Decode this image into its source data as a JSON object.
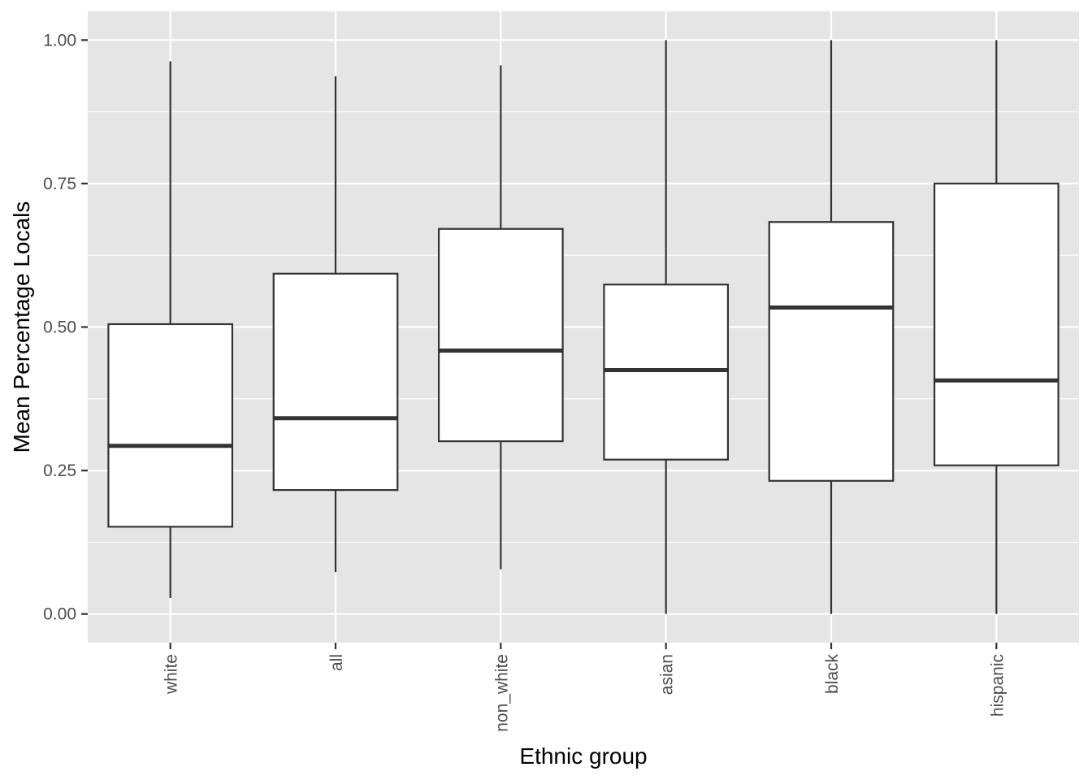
{
  "chart_data": {
    "type": "boxplot",
    "title": "",
    "xlabel": "Ethnic group",
    "ylabel": "Mean Percentage Locals",
    "ylim": [
      -0.05,
      1.05
    ],
    "yticks": [
      0.0,
      0.25,
      0.5,
      0.75,
      1.0
    ],
    "ytick_labels": [
      "0.00",
      "0.25",
      "0.50",
      "0.75",
      "1.00"
    ],
    "categories": [
      "white",
      "all",
      "non_white",
      "asian",
      "black",
      "hispanic"
    ],
    "boxes": [
      {
        "category": "white",
        "whisker_low": 0.028,
        "q1": 0.152,
        "median": 0.293,
        "q3": 0.505,
        "whisker_high": 0.963
      },
      {
        "category": "all",
        "whisker_low": 0.073,
        "q1": 0.216,
        "median": 0.341,
        "q3": 0.593,
        "whisker_high": 0.937
      },
      {
        "category": "non_white",
        "whisker_low": 0.078,
        "q1": 0.301,
        "median": 0.459,
        "q3": 0.671,
        "whisker_high": 0.956
      },
      {
        "category": "asian",
        "whisker_low": 0.0,
        "q1": 0.269,
        "median": 0.425,
        "q3": 0.574,
        "whisker_high": 1.0
      },
      {
        "category": "black",
        "whisker_low": 0.0,
        "q1": 0.232,
        "median": 0.534,
        "q3": 0.683,
        "whisker_high": 1.0
      },
      {
        "category": "hispanic",
        "whisker_low": 0.0,
        "q1": 0.259,
        "median": 0.407,
        "q3": 0.75,
        "whisker_high": 1.0
      }
    ],
    "grid": true,
    "legend": "none",
    "colors": {
      "panel_background": "#e5e5e5",
      "grid": "#ffffff",
      "box_fill": "#ffffff",
      "box_stroke": "#333333",
      "tick_label": "#4d4d4d",
      "axis_title": "#000000"
    }
  }
}
